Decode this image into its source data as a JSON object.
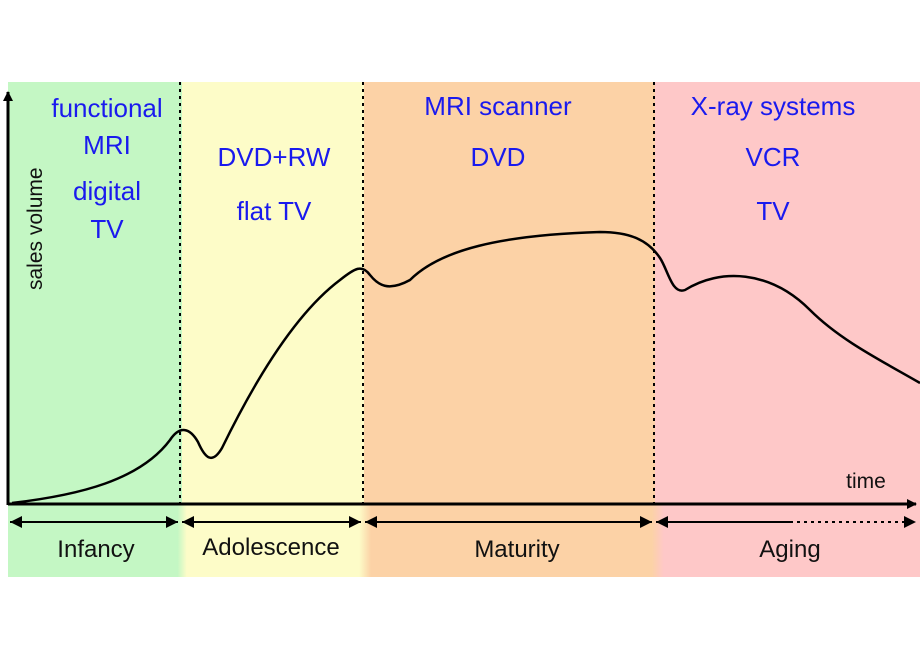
{
  "axes": {
    "y_label": "sales volume",
    "x_label": "time"
  },
  "phases": [
    {
      "name": "Infancy",
      "color": "#c4f7c4",
      "products": [
        "functional",
        "MRI",
        "digital",
        "TV"
      ]
    },
    {
      "name": "Adolescence",
      "color": "#fdfcc8",
      "products": [
        "DVD+RW",
        "flat TV"
      ]
    },
    {
      "name": "Maturity",
      "color": "#fcd2a6",
      "products": [
        "MRI scanner",
        "DVD"
      ]
    },
    {
      "name": "Aging",
      "color": "#fec8c8",
      "products": [
        "X-ray systems",
        "VCR",
        "TV"
      ]
    }
  ],
  "colors": {
    "product_text": "#1a1aee",
    "curve": "#000000"
  }
}
